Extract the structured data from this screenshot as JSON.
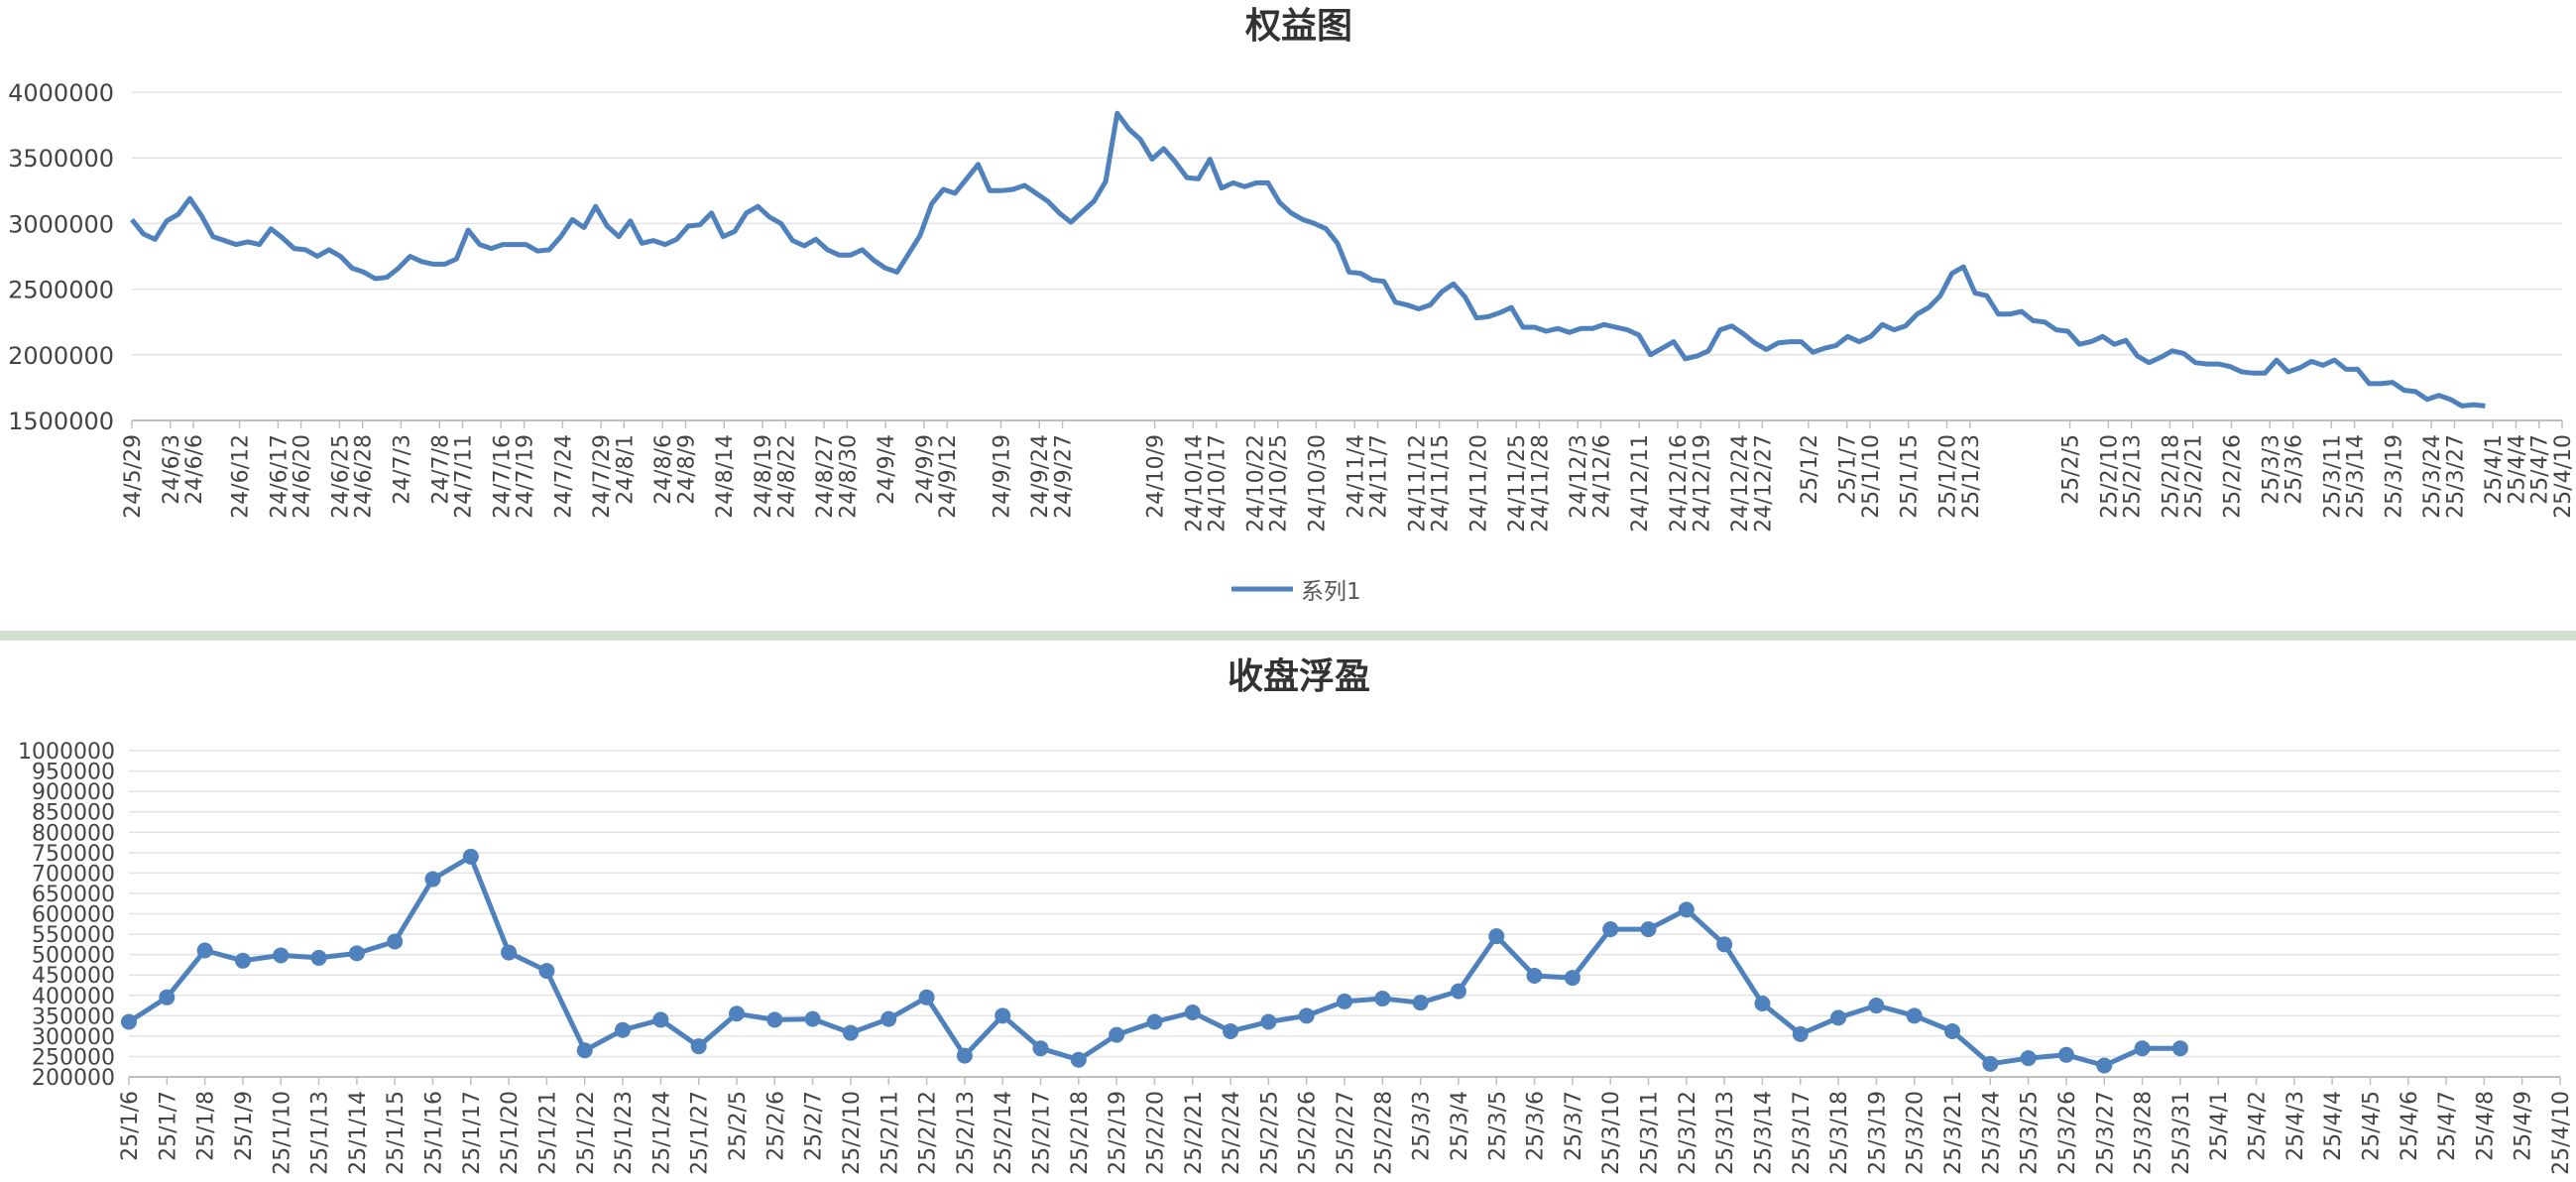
{
  "colors": {
    "line": "#4f81bd",
    "grid": "#e3e3e3",
    "axis": "#bfbfbf",
    "divider": "#cfe3cc"
  },
  "chart_data": [
    {
      "type": "line",
      "title": "权益图",
      "ylim": [
        1500000,
        4000000
      ],
      "yticks": [
        "1500000",
        "2000000",
        "2500000",
        "3000000",
        "3500000",
        "4000000"
      ],
      "x_range": [
        "24/5/29",
        "25/4/10"
      ],
      "xticks": [
        "24/5/29",
        "24/6/3",
        "24/6/6",
        "24/6/12",
        "24/6/17",
        "24/6/20",
        "24/6/25",
        "24/6/28",
        "24/7/3",
        "24/7/8",
        "24/7/11",
        "24/7/16",
        "24/7/19",
        "24/7/24",
        "24/7/29",
        "24/8/1",
        "24/8/6",
        "24/8/9",
        "24/8/14",
        "24/8/19",
        "24/8/22",
        "24/8/27",
        "24/8/30",
        "24/9/4",
        "24/9/9",
        "24/9/12",
        "24/9/19",
        "24/9/24",
        "24/9/27",
        "24/10/9",
        "24/10/14",
        "24/10/17",
        "24/10/22",
        "24/10/25",
        "24/10/30",
        "24/11/4",
        "24/11/7",
        "24/11/12",
        "24/11/15",
        "24/11/20",
        "24/11/25",
        "24/11/28",
        "24/12/3",
        "24/12/6",
        "24/12/11",
        "24/12/16",
        "24/12/19",
        "24/12/24",
        "24/12/27",
        "25/1/2",
        "25/1/7",
        "25/1/10",
        "25/1/15",
        "25/1/20",
        "25/1/23",
        "25/2/5",
        "25/2/10",
        "25/2/13",
        "25/2/18",
        "25/2/21",
        "25/2/26",
        "25/3/3",
        "25/3/6",
        "25/3/11",
        "25/3/14",
        "25/3/19",
        "25/3/24",
        "25/3/27",
        "25/4/1",
        "25/4/4",
        "25/4/7",
        "25/4/10"
      ],
      "legend": "系列1",
      "legend_position": "bottom",
      "grid": true,
      "values": [
        3030000,
        2920000,
        2880000,
        3020000,
        3070000,
        3190000,
        3060000,
        2900000,
        2870000,
        2840000,
        2860000,
        2840000,
        2960000,
        2890000,
        2810000,
        2800000,
        2750000,
        2800000,
        2750000,
        2660000,
        2630000,
        2580000,
        2590000,
        2660000,
        2750000,
        2710000,
        2690000,
        2690000,
        2730000,
        2950000,
        2840000,
        2810000,
        2840000,
        2840000,
        2840000,
        2790000,
        2800000,
        2900000,
        3030000,
        2970000,
        3130000,
        2980000,
        2900000,
        3020000,
        2850000,
        2870000,
        2840000,
        2880000,
        2980000,
        2990000,
        3080000,
        2900000,
        2940000,
        3080000,
        3130000,
        3050000,
        3000000,
        2870000,
        2830000,
        2880000,
        2800000,
        2760000,
        2760000,
        2800000,
        2720000,
        2660000,
        2630000,
        2770000,
        2910000,
        3150000,
        3260000,
        3230000,
        3340000,
        3450000,
        3250000,
        3250000,
        3260000,
        3290000,
        3230000,
        3170000,
        3080000,
        3010000,
        3090000,
        3170000,
        3320000,
        3840000,
        3720000,
        3640000,
        3490000,
        3570000,
        3470000,
        3350000,
        3340000,
        3490000,
        3270000,
        3310000,
        3280000,
        3310000,
        3310000,
        3160000,
        3080000,
        3030000,
        3000000,
        2960000,
        2850000,
        2630000,
        2620000,
        2570000,
        2560000,
        2400000,
        2380000,
        2350000,
        2380000,
        2480000,
        2540000,
        2440000,
        2280000,
        2290000,
        2320000,
        2360000,
        2210000,
        2210000,
        2180000,
        2200000,
        2170000,
        2200000,
        2200000,
        2230000,
        2210000,
        2190000,
        2150000,
        2000000,
        2050000,
        2100000,
        1970000,
        1990000,
        2030000,
        2190000,
        2220000,
        2160000,
        2090000,
        2040000,
        2090000,
        2100000,
        2100000,
        2020000,
        2050000,
        2070000,
        2140000,
        2100000,
        2140000,
        2230000,
        2190000,
        2220000,
        2310000,
        2360000,
        2450000,
        2620000,
        2670000,
        2470000,
        2450000,
        2310000,
        2310000,
        2330000,
        2260000,
        2250000,
        2190000,
        2180000,
        2080000,
        2100000,
        2140000,
        2080000,
        2110000,
        1990000,
        1940000,
        1980000,
        2030000,
        2010000,
        1940000,
        1930000,
        1930000,
        1910000,
        1870000,
        1860000,
        1860000,
        1960000,
        1870000,
        1900000,
        1950000,
        1920000,
        1960000,
        1890000,
        1890000,
        1780000,
        1780000,
        1790000,
        1730000,
        1720000,
        1660000,
        1690000,
        1660000,
        1610000,
        1620000,
        1610000
      ]
    },
    {
      "type": "line",
      "title": "收盘浮盈",
      "ylim": [
        200000,
        1000000
      ],
      "yticks": [
        "200000",
        "250000",
        "300000",
        "350000",
        "400000",
        "450000",
        "500000",
        "550000",
        "600000",
        "650000",
        "700000",
        "750000",
        "800000",
        "850000",
        "900000",
        "950000",
        "1000000"
      ],
      "categories": [
        "25/1/6",
        "25/1/7",
        "25/1/8",
        "25/1/9",
        "25/1/10",
        "25/1/13",
        "25/1/14",
        "25/1/15",
        "25/1/16",
        "25/1/17",
        "25/1/20",
        "25/1/21",
        "25/1/22",
        "25/1/23",
        "25/1/24",
        "25/1/27",
        "25/2/5",
        "25/2/6",
        "25/2/7",
        "25/2/10",
        "25/2/11",
        "25/2/12",
        "25/2/13",
        "25/2/14",
        "25/2/17",
        "25/2/18",
        "25/2/19",
        "25/2/20",
        "25/2/21",
        "25/2/24",
        "25/2/25",
        "25/2/26",
        "25/2/27",
        "25/2/28",
        "25/3/3",
        "25/3/4",
        "25/3/5",
        "25/3/6",
        "25/3/7",
        "25/3/10",
        "25/3/11",
        "25/3/12",
        "25/3/13",
        "25/3/14",
        "25/3/17",
        "25/3/18",
        "25/3/19",
        "25/3/20",
        "25/3/21",
        "25/3/24",
        "25/3/25",
        "25/3/26",
        "25/3/27",
        "25/3/28",
        "25/3/31",
        "25/4/1",
        "25/4/2",
        "25/4/3",
        "25/4/4",
        "25/4/5",
        "25/4/6",
        "25/4/7",
        "25/4/8",
        "25/4/9",
        "25/4/10"
      ],
      "values": [
        335000,
        395000,
        510000,
        485000,
        498000,
        492000,
        503000,
        532000,
        685000,
        740000,
        505000,
        460000,
        265000,
        315000,
        340000,
        275000,
        355000,
        340000,
        342000,
        308000,
        342000,
        395000,
        252000,
        350000,
        270000,
        242000,
        303000,
        335000,
        358000,
        312000,
        335000,
        350000,
        385000,
        392000,
        382000,
        410000,
        545000,
        448000,
        443000,
        562000,
        562000,
        610000,
        525000,
        380000,
        305000,
        345000,
        375000,
        350000,
        312000,
        232000,
        246000,
        254000,
        228000,
        270000,
        270000,
        null,
        null,
        null,
        null,
        null,
        null,
        null,
        null,
        null,
        null
      ],
      "grid": true
    }
  ]
}
